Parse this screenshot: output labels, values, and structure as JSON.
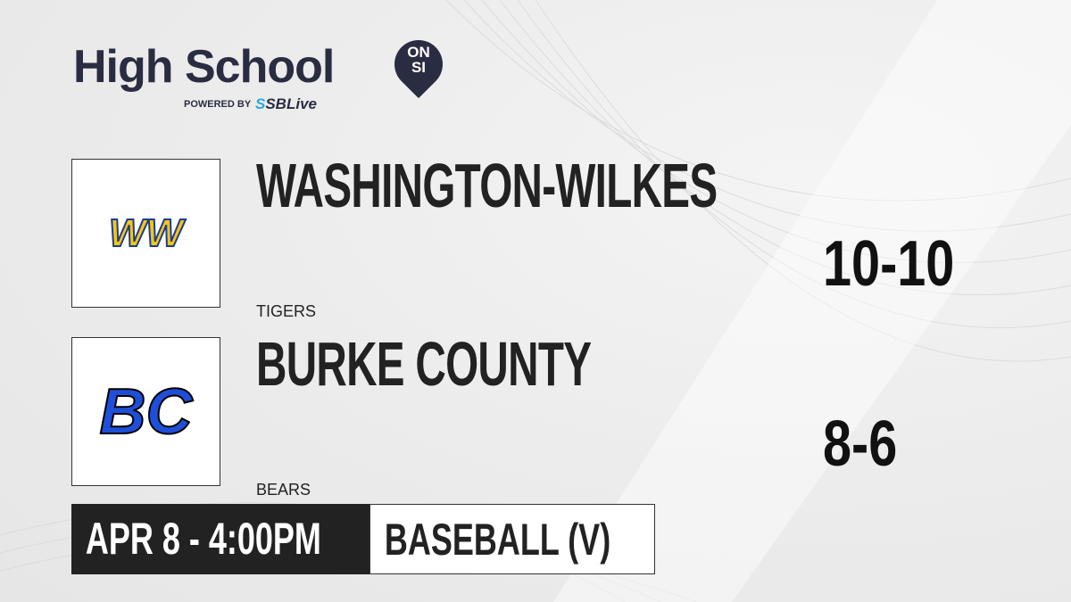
{
  "brand": {
    "title": "High School",
    "badge_top": "ON",
    "badge_bottom": "SI",
    "powered_by": "POWERED BY",
    "partner_prefix": "S",
    "partner": "SBLive"
  },
  "teams": [
    {
      "name": "WASHINGTON-WILKES",
      "mascot": "TIGERS",
      "record": "10-10",
      "logo_text": "WW",
      "logo_color": "#f5c518"
    },
    {
      "name": "BURKE COUNTY",
      "mascot": "BEARS",
      "record": "8-6",
      "logo_text": "BC",
      "logo_color": "#1e4fd8"
    }
  ],
  "game": {
    "datetime": "APR 8 - 4:00PM",
    "sport": "BASEBALL (V)"
  }
}
